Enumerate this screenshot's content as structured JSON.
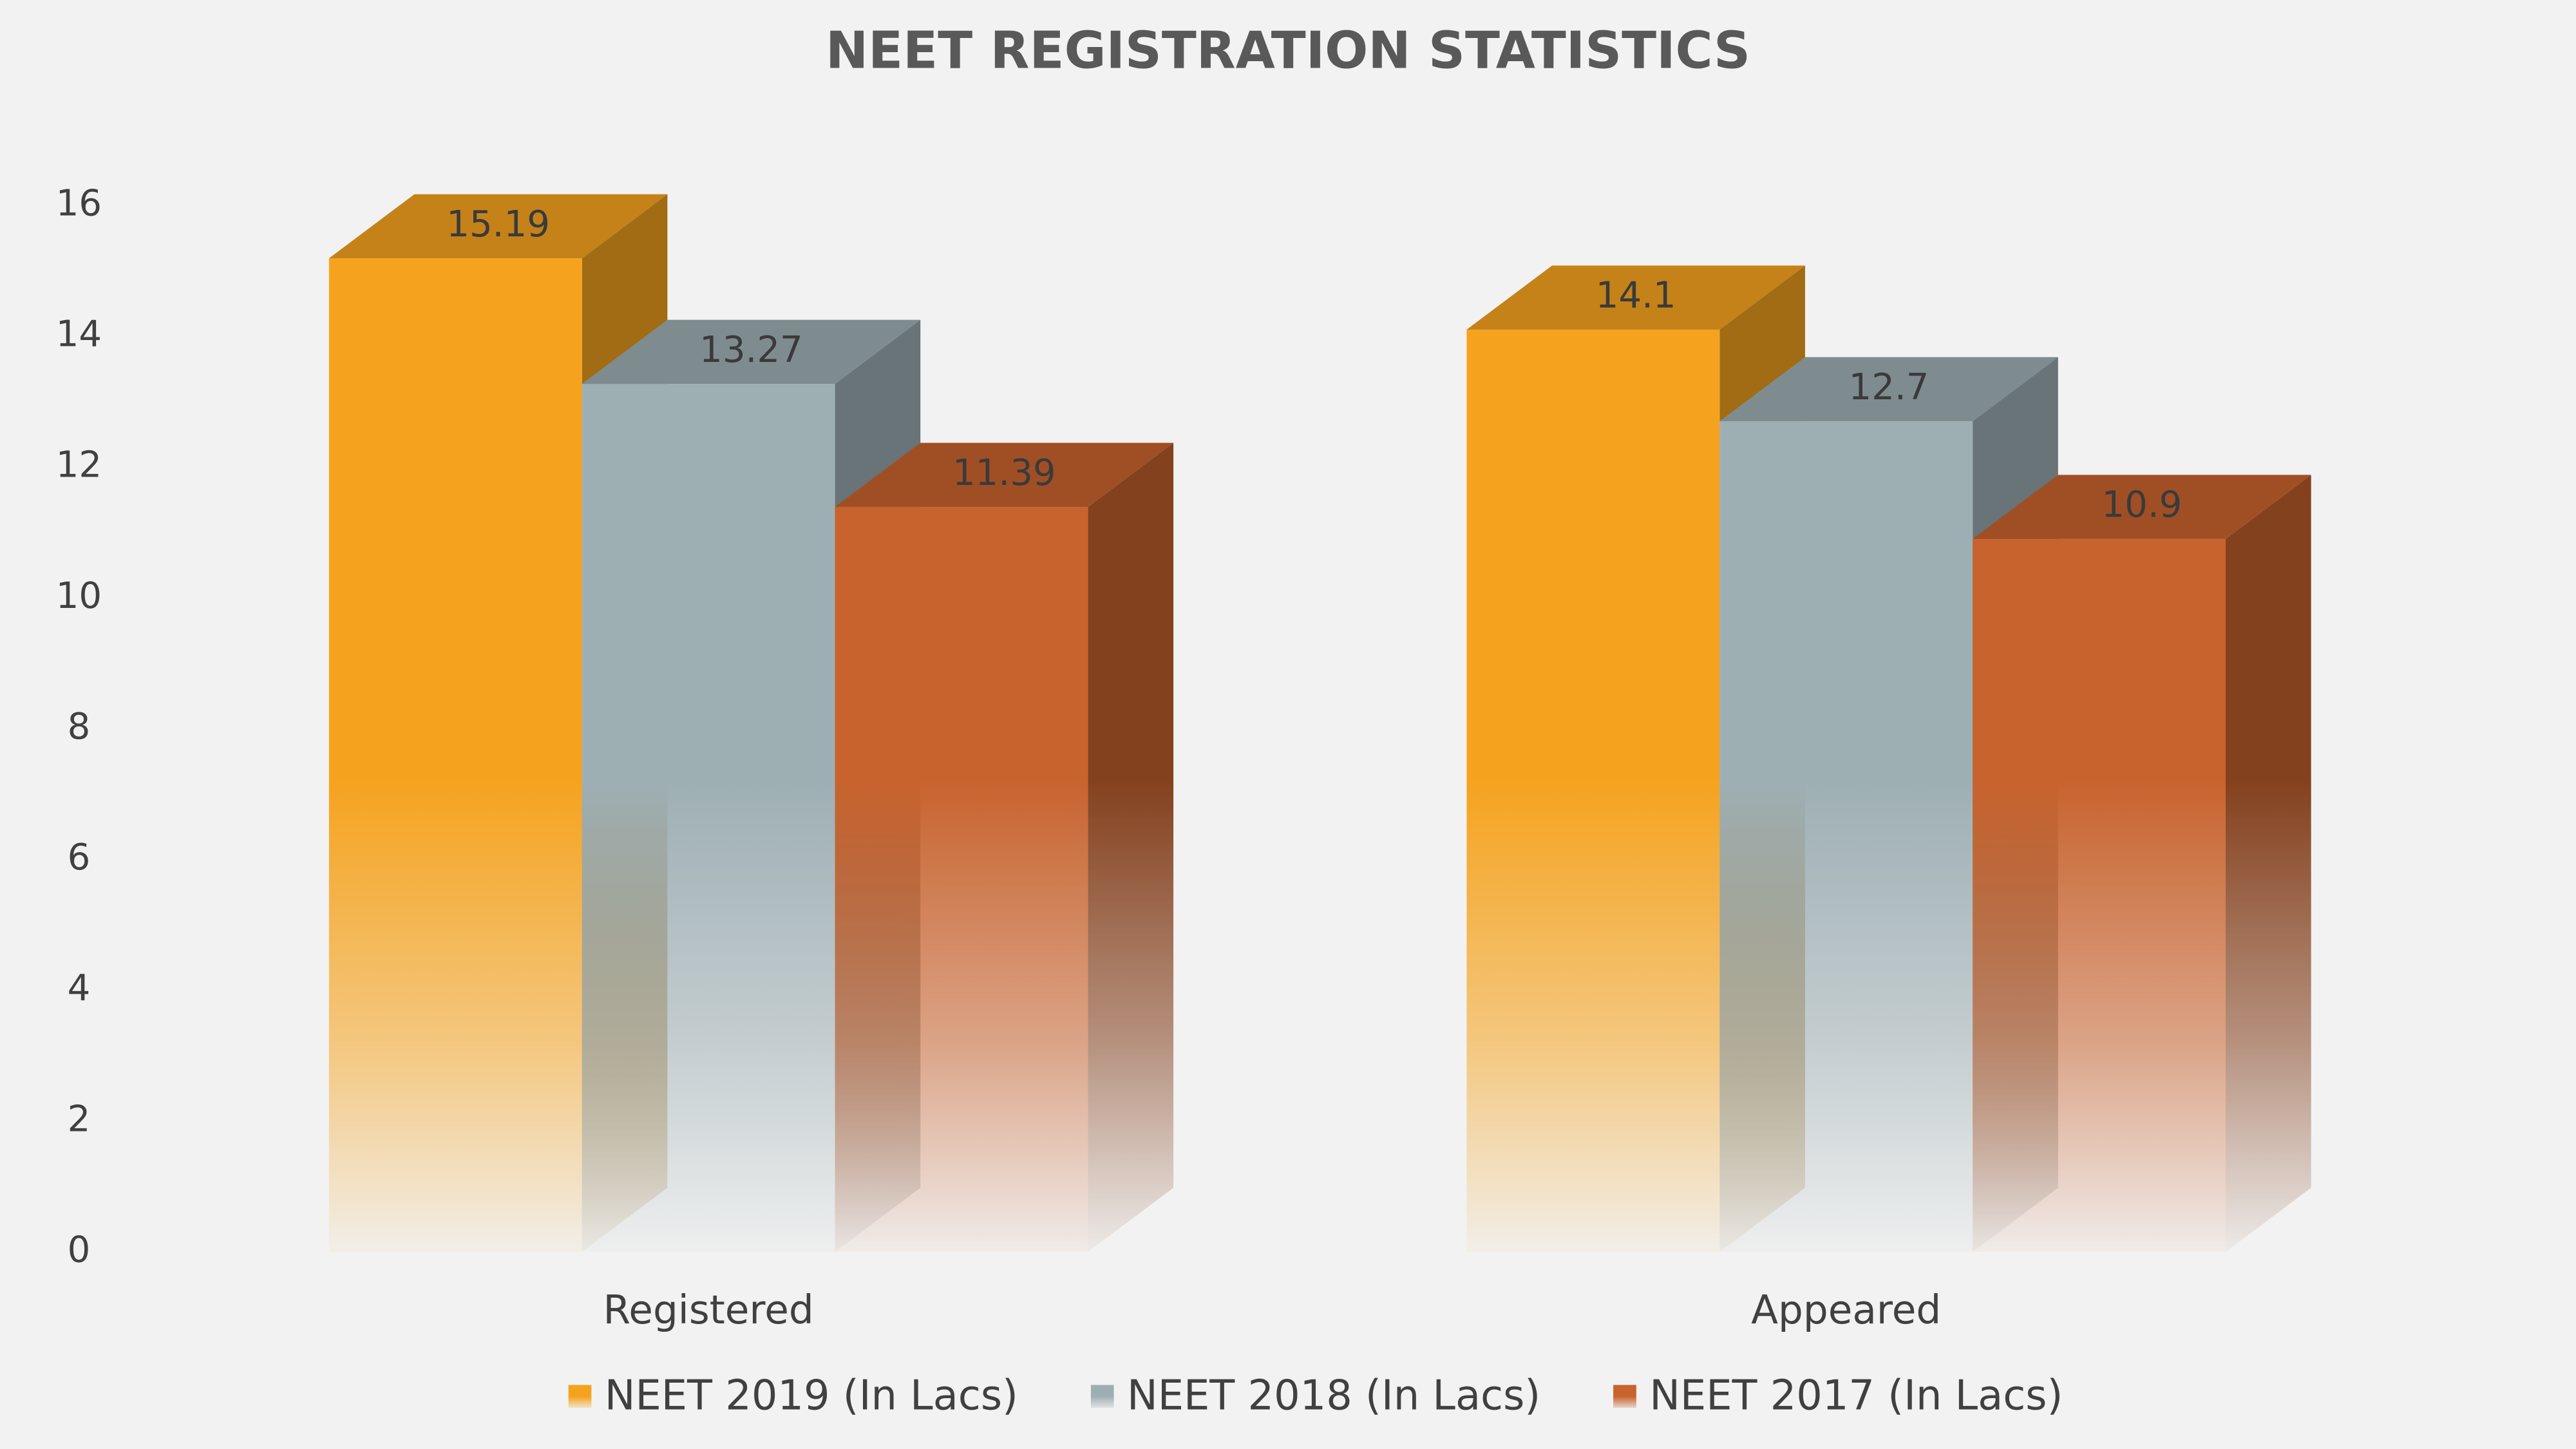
{
  "chart_data": {
    "type": "bar3d",
    "title": "NEET REGISTRATION STATISTICS",
    "categories": [
      "Registered",
      "Appeared"
    ],
    "series": [
      {
        "name": "NEET 2019 (In Lacs)",
        "color": "#f5a31f",
        "values": [
          15.19,
          14.1
        ]
      },
      {
        "name": "NEET 2018 (In Lacs)",
        "color": "#9eafb4",
        "values": [
          13.27,
          12.7
        ]
      },
      {
        "name": "NEET 2017 (In Lacs)",
        "color": "#c8632e",
        "values": [
          11.39,
          10.9
        ]
      }
    ],
    "ylim": [
      0,
      16
    ],
    "yticks": [
      0,
      2,
      4,
      6,
      8,
      10,
      12,
      14,
      16
    ],
    "grid": false,
    "legend": "bottom"
  }
}
